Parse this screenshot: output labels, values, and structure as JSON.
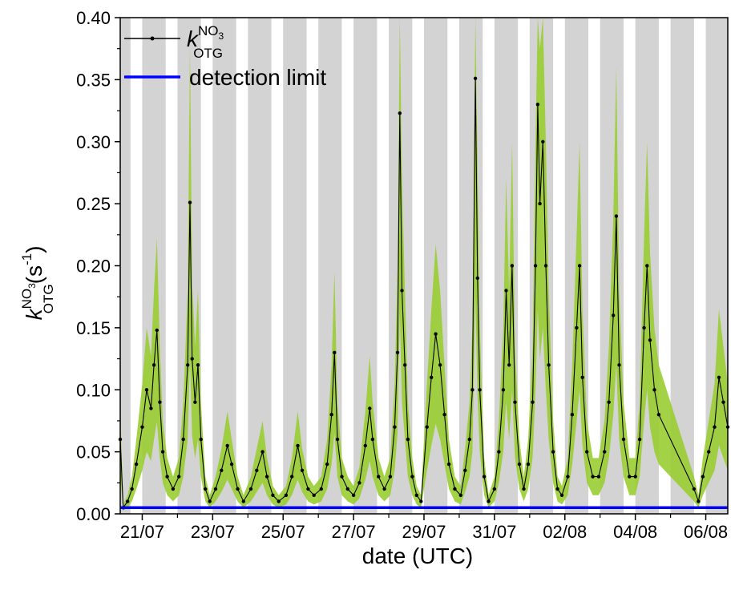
{
  "chart_data": {
    "type": "line",
    "xlabel": "date (UTC)",
    "ylabel": {
      "symbol": "k",
      "superscript": "NO",
      "superscript_sub": "3",
      "subscript": "OTG",
      "unit_prefix": "(s",
      "unit_exponent": "-1",
      "unit_suffix": ")"
    },
    "xlim": [
      "2018-07-20T09:00",
      "2018-08-06T15:00"
    ],
    "ylim": [
      0,
      0.4
    ],
    "yticks": [
      "0.00",
      "0.05",
      "0.10",
      "0.15",
      "0.20",
      "0.25",
      "0.30",
      "0.35",
      "0.40"
    ],
    "xticks": [
      {
        "date": "2018-07-21",
        "label": "21/07"
      },
      {
        "date": "2018-07-23",
        "label": "23/07"
      },
      {
        "date": "2018-07-25",
        "label": "25/07"
      },
      {
        "date": "2018-07-27",
        "label": "27/07"
      },
      {
        "date": "2018-07-29",
        "label": "29/07"
      },
      {
        "date": "2018-07-31",
        "label": "31/07"
      },
      {
        "date": "2018-08-02",
        "label": "02/08"
      },
      {
        "date": "2018-08-04",
        "label": "04/08"
      },
      {
        "date": "2018-08-06",
        "label": "06/08"
      }
    ],
    "night_bands": [
      [
        "2018-07-20T09:00",
        "2018-07-20T16:00"
      ],
      [
        "2018-07-21T00:00",
        "2018-07-21T16:00"
      ],
      [
        "2018-07-22T00:00",
        "2018-07-22T16:00"
      ],
      [
        "2018-07-23T00:00",
        "2018-07-23T16:00"
      ],
      [
        "2018-07-24T00:00",
        "2018-07-24T16:00"
      ],
      [
        "2018-07-25T00:00",
        "2018-07-25T16:00"
      ],
      [
        "2018-07-26T00:00",
        "2018-07-26T16:00"
      ],
      [
        "2018-07-27T00:00",
        "2018-07-27T16:00"
      ],
      [
        "2018-07-28T00:00",
        "2018-07-28T16:00"
      ],
      [
        "2018-07-29T00:00",
        "2018-07-29T16:00"
      ],
      [
        "2018-07-30T00:00",
        "2018-07-30T16:00"
      ],
      [
        "2018-07-31T00:00",
        "2018-07-31T16:00"
      ],
      [
        "2018-08-01T00:00",
        "2018-08-01T16:00"
      ],
      [
        "2018-08-02T00:00",
        "2018-08-02T16:00"
      ],
      [
        "2018-08-03T00:00",
        "2018-08-03T16:00"
      ],
      [
        "2018-08-04T00:00",
        "2018-08-04T16:00"
      ],
      [
        "2018-08-05T00:00",
        "2018-08-05T16:00"
      ],
      [
        "2018-08-06T00:00",
        "2018-08-06T15:00"
      ]
    ],
    "legend": {
      "placement": "top-left"
    },
    "series": [
      {
        "name": "k_OTG^NO3",
        "legend_label": {
          "symbol": "k",
          "superscript": "NO",
          "superscript_sub": "3",
          "subscript": "OTG"
        },
        "color": "#000000",
        "marker": "dot",
        "uncertainty_color": "#9acd32",
        "uncertainty_relative": 0.5,
        "points": [
          [
            "2018-07-20T09:00",
            0.06
          ],
          [
            "2018-07-20T11:00",
            0.005
          ],
          [
            "2018-07-20T14:00",
            0.01
          ],
          [
            "2018-07-20T17:00",
            0.02
          ],
          [
            "2018-07-20T20:00",
            0.04
          ],
          [
            "2018-07-21T00:00",
            0.07
          ],
          [
            "2018-07-21T03:00",
            0.1
          ],
          [
            "2018-07-21T06:00",
            0.085
          ],
          [
            "2018-07-21T08:00",
            0.12
          ],
          [
            "2018-07-21T10:00",
            0.148
          ],
          [
            "2018-07-21T12:00",
            0.09
          ],
          [
            "2018-07-21T14:00",
            0.05
          ],
          [
            "2018-07-21T17:00",
            0.03
          ],
          [
            "2018-07-21T21:00",
            0.02
          ],
          [
            "2018-07-22T01:00",
            0.03
          ],
          [
            "2018-07-22T04:00",
            0.06
          ],
          [
            "2018-07-22T07:00",
            0.12
          ],
          [
            "2018-07-22T08:30",
            0.251
          ],
          [
            "2018-07-22T10:00",
            0.125
          ],
          [
            "2018-07-22T12:00",
            0.09
          ],
          [
            "2018-07-22T14:00",
            0.12
          ],
          [
            "2018-07-22T16:00",
            0.06
          ],
          [
            "2018-07-22T19:00",
            0.02
          ],
          [
            "2018-07-22T22:00",
            0.01
          ],
          [
            "2018-07-23T02:00",
            0.02
          ],
          [
            "2018-07-23T06:00",
            0.035
          ],
          [
            "2018-07-23T10:00",
            0.055
          ],
          [
            "2018-07-23T13:00",
            0.04
          ],
          [
            "2018-07-23T17:00",
            0.02
          ],
          [
            "2018-07-23T21:00",
            0.01
          ],
          [
            "2018-07-24T02:00",
            0.02
          ],
          [
            "2018-07-24T06:00",
            0.035
          ],
          [
            "2018-07-24T10:00",
            0.05
          ],
          [
            "2018-07-24T13:00",
            0.03
          ],
          [
            "2018-07-24T17:00",
            0.015
          ],
          [
            "2018-07-24T21:00",
            0.01
          ],
          [
            "2018-07-25T02:00",
            0.015
          ],
          [
            "2018-07-25T06:00",
            0.03
          ],
          [
            "2018-07-25T10:00",
            0.055
          ],
          [
            "2018-07-25T13:00",
            0.035
          ],
          [
            "2018-07-25T17:00",
            0.02
          ],
          [
            "2018-07-25T21:00",
            0.015
          ],
          [
            "2018-07-26T02:00",
            0.02
          ],
          [
            "2018-07-26T06:00",
            0.04
          ],
          [
            "2018-07-26T09:00",
            0.08
          ],
          [
            "2018-07-26T11:00",
            0.13
          ],
          [
            "2018-07-26T13:00",
            0.06
          ],
          [
            "2018-07-26T16:00",
            0.03
          ],
          [
            "2018-07-26T20:00",
            0.02
          ],
          [
            "2018-07-27T00:00",
            0.015
          ],
          [
            "2018-07-27T04:00",
            0.025
          ],
          [
            "2018-07-27T08:00",
            0.055
          ],
          [
            "2018-07-27T11:00",
            0.085
          ],
          [
            "2018-07-27T13:00",
            0.06
          ],
          [
            "2018-07-27T17:00",
            0.03
          ],
          [
            "2018-07-27T21:00",
            0.02
          ],
          [
            "2018-07-28T01:00",
            0.03
          ],
          [
            "2018-07-28T04:00",
            0.07
          ],
          [
            "2018-07-28T06:00",
            0.13
          ],
          [
            "2018-07-28T07:30",
            0.323
          ],
          [
            "2018-07-28T09:00",
            0.18
          ],
          [
            "2018-07-28T11:00",
            0.12
          ],
          [
            "2018-07-28T13:00",
            0.06
          ],
          [
            "2018-07-28T16:00",
            0.03
          ],
          [
            "2018-07-28T19:00",
            0.015
          ],
          [
            "2018-07-28T22:00",
            0.01
          ],
          [
            "2018-07-29T02:00",
            0.07
          ],
          [
            "2018-07-29T05:00",
            0.11
          ],
          [
            "2018-07-29T08:00",
            0.145
          ],
          [
            "2018-07-29T11:00",
            0.12
          ],
          [
            "2018-07-29T14:00",
            0.08
          ],
          [
            "2018-07-29T17:00",
            0.04
          ],
          [
            "2018-07-29T21:00",
            0.02
          ],
          [
            "2018-07-30T01:00",
            0.015
          ],
          [
            "2018-07-30T04:00",
            0.035
          ],
          [
            "2018-07-30T07:00",
            0.06
          ],
          [
            "2018-07-30T09:00",
            0.1
          ],
          [
            "2018-07-30T11:00",
            0.351
          ],
          [
            "2018-07-30T12:30",
            0.19
          ],
          [
            "2018-07-30T14:00",
            0.1
          ],
          [
            "2018-07-30T17:00",
            0.03
          ],
          [
            "2018-07-30T20:00",
            0.01
          ],
          [
            "2018-07-31T00:00",
            0.02
          ],
          [
            "2018-07-31T03:00",
            0.05
          ],
          [
            "2018-07-31T06:00",
            0.1
          ],
          [
            "2018-07-31T08:00",
            0.18
          ],
          [
            "2018-07-31T10:00",
            0.12
          ],
          [
            "2018-07-31T12:00",
            0.2
          ],
          [
            "2018-07-31T14:00",
            0.09
          ],
          [
            "2018-07-31T17:00",
            0.04
          ],
          [
            "2018-07-31T20:00",
            0.02
          ],
          [
            "2018-07-31T23:00",
            0.04
          ],
          [
            "2018-08-01T02:00",
            0.09
          ],
          [
            "2018-08-01T04:00",
            0.2
          ],
          [
            "2018-08-01T05:30",
            0.33
          ],
          [
            "2018-08-01T07:00",
            0.25
          ],
          [
            "2018-08-01T09:00",
            0.3
          ],
          [
            "2018-08-01T11:00",
            0.2
          ],
          [
            "2018-08-01T13:00",
            0.12
          ],
          [
            "2018-08-01T16:00",
            0.05
          ],
          [
            "2018-08-01T19:00",
            0.02
          ],
          [
            "2018-08-01T22:00",
            0.015
          ],
          [
            "2018-08-02T02:00",
            0.03
          ],
          [
            "2018-08-02T05:00",
            0.08
          ],
          [
            "2018-08-02T08:00",
            0.15
          ],
          [
            "2018-08-02T10:00",
            0.2
          ],
          [
            "2018-08-02T12:00",
            0.11
          ],
          [
            "2018-08-02T15:00",
            0.05
          ],
          [
            "2018-08-02T19:00",
            0.03
          ],
          [
            "2018-08-02T23:00",
            0.03
          ],
          [
            "2018-08-03T03:00",
            0.05
          ],
          [
            "2018-08-03T06:00",
            0.09
          ],
          [
            "2018-08-03T09:00",
            0.16
          ],
          [
            "2018-08-03T11:00",
            0.24
          ],
          [
            "2018-08-03T13:00",
            0.12
          ],
          [
            "2018-08-03T16:00",
            0.06
          ],
          [
            "2018-08-03T20:00",
            0.03
          ],
          [
            "2018-08-04T00:00",
            0.03
          ],
          [
            "2018-08-04T03:00",
            0.06
          ],
          [
            "2018-08-04T06:00",
            0.15
          ],
          [
            "2018-08-04T08:00",
            0.2
          ],
          [
            "2018-08-04T10:00",
            0.14
          ],
          [
            "2018-08-04T13:00",
            0.1
          ],
          [
            "2018-08-04T16:00",
            0.08
          ],
          [
            "2018-08-05T16:00",
            0.02
          ],
          [
            "2018-08-05T19:00",
            0.01
          ],
          [
            "2018-08-05T22:00",
            0.03
          ],
          [
            "2018-08-06T02:00",
            0.05
          ],
          [
            "2018-08-06T06:00",
            0.07
          ],
          [
            "2018-08-06T09:00",
            0.11
          ],
          [
            "2018-08-06T12:00",
            0.09
          ],
          [
            "2018-08-06T15:00",
            0.07
          ]
        ]
      },
      {
        "name": "detection limit",
        "color": "#0000ff",
        "points": [
          [
            "2018-07-20T09:00",
            0.005
          ],
          [
            "2018-08-06T15:00",
            0.005
          ]
        ]
      }
    ]
  }
}
